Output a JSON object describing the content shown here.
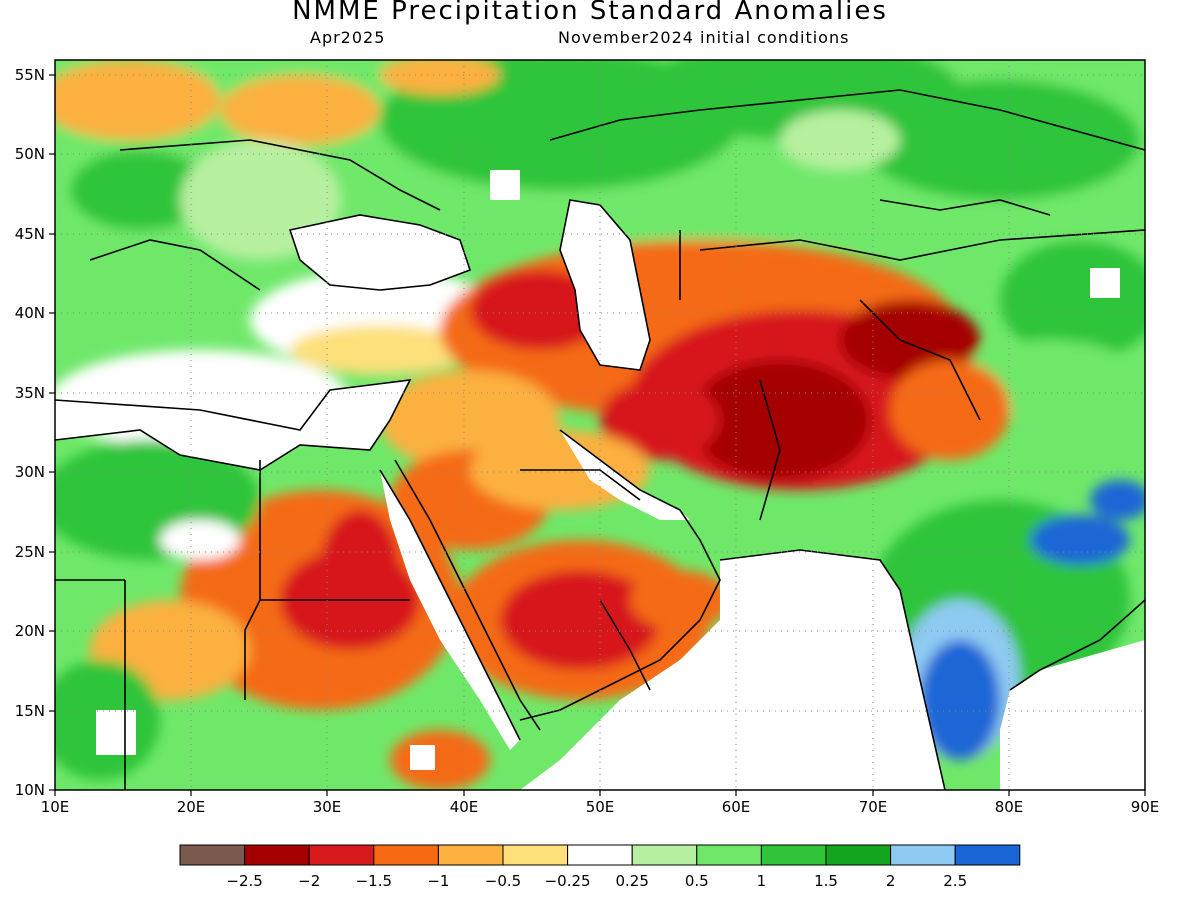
{
  "title": "NMME Precipitation Standard Anomalies",
  "subtitle_left": "Apr2025",
  "subtitle_right": "November2024 initial conditions",
  "map": {
    "lon_range": [
      10,
      90
    ],
    "lat_range": [
      10,
      56
    ],
    "x_ticks": [
      "10E",
      "20E",
      "30E",
      "40E",
      "50E",
      "60E",
      "70E",
      "80E",
      "90E"
    ],
    "y_ticks": [
      "55N",
      "50N",
      "45N",
      "40N",
      "35N",
      "30N",
      "25N",
      "20N",
      "15N",
      "10N"
    ],
    "gridlines": "dotted"
  },
  "colorbar": {
    "colors": [
      "#7a5a4e",
      "#a50000",
      "#d7191c",
      "#f56a12",
      "#fbb040",
      "#fde07a",
      "#ffffff",
      "#b7f0a0",
      "#6fe86a",
      "#2fc43a",
      "#13a51e",
      "#8fcaf2",
      "#1a66d6"
    ],
    "labels": [
      "−2.5",
      "−2",
      "−1.5",
      "−1",
      "−0.5",
      "−0.25",
      "0.25",
      "0.5",
      "1",
      "1.5",
      "2",
      "2.5"
    ]
  },
  "colors": {
    "dry_extreme": "#a50000",
    "wet_extreme": "#1a66d6"
  }
}
